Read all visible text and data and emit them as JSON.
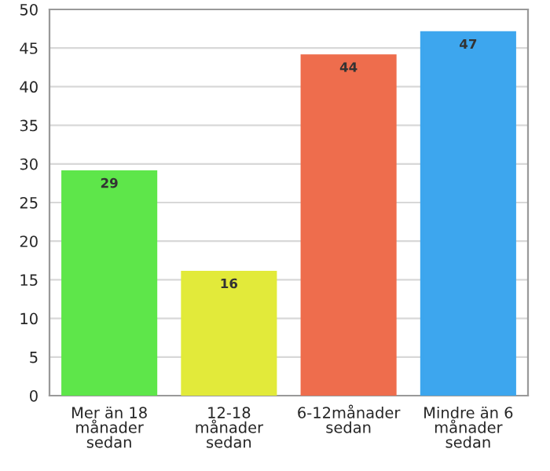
{
  "chart_data": {
    "type": "bar",
    "categories": [
      "Mer än 18\nmånader\nsedan",
      "12-18\nmånader\nsedan",
      "6-12månader\nsedan",
      "Mindre än 6\nmånader\nsedan"
    ],
    "values": [
      29,
      16,
      44,
      47
    ],
    "colors": [
      "#5ee64a",
      "#e2ea3a",
      "#ee6d4d",
      "#3da6ee"
    ],
    "ylim": [
      0,
      50
    ],
    "yticks": [
      0,
      5,
      10,
      15,
      20,
      25,
      30,
      35,
      40,
      45,
      50
    ],
    "grid": "y",
    "data_labels": true
  }
}
